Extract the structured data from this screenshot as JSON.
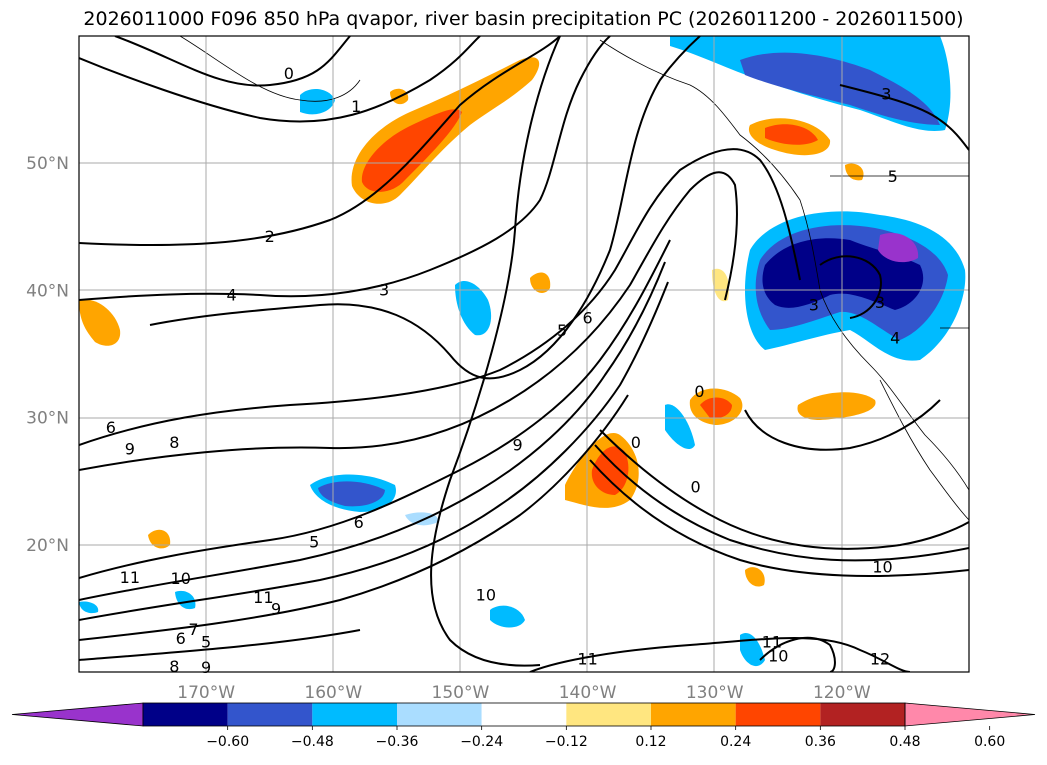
{
  "title": "2026011000 F096 850 hPa qvapor, river basin precipitation PC (2026011200 - 2026011500)",
  "chart_data": {
    "type": "contour-map",
    "title": "2026011000 F096 850 hPa qvapor, river basin precipitation PC (2026011200 - 2026011500)",
    "projection": "lat-lon",
    "lon_range": [
      -180,
      -110
    ],
    "lat_range": [
      10,
      60
    ],
    "lat_ticks": [
      {
        "value": 20,
        "label": "20°N"
      },
      {
        "value": 30,
        "label": "30°N"
      },
      {
        "value": 40,
        "label": "40°N"
      },
      {
        "value": 50,
        "label": "50°N"
      }
    ],
    "lon_ticks": [
      {
        "value": -170,
        "label": "170°W"
      },
      {
        "value": -160,
        "label": "160°W"
      },
      {
        "value": -150,
        "label": "150°W"
      },
      {
        "value": -140,
        "label": "140°W"
      },
      {
        "value": -130,
        "label": "130°W"
      },
      {
        "value": -120,
        "label": "120°W"
      }
    ],
    "colorbar": {
      "levels": [
        "−0.60",
        "−0.48",
        "−0.36",
        "−0.24",
        "−0.12",
        "0.12",
        "0.24",
        "0.36",
        "0.48",
        "0.60"
      ],
      "colors": [
        "#9933cc",
        "#000088",
        "#3355cc",
        "#00bbff",
        "#aaddff",
        "#ffffff",
        "#ffe680",
        "#ffa500",
        "#ff4500",
        "#b22222",
        "#ff88aa"
      ],
      "extend": "both"
    },
    "contour_labels": [
      "0",
      "1",
      "2",
      "3",
      "4",
      "5",
      "6",
      "7",
      "8",
      "9",
      "10",
      "11",
      "12"
    ],
    "contour_label_instances": [
      {
        "text": "0",
        "lon": -163.5,
        "lat": 57.0
      },
      {
        "text": "1",
        "lon": -158.2,
        "lat": 54.4
      },
      {
        "text": "2",
        "lon": -165.0,
        "lat": 44.2
      },
      {
        "text": "4",
        "lon": -168.0,
        "lat": 39.6
      },
      {
        "text": "3",
        "lon": -156.0,
        "lat": 40.0
      },
      {
        "text": "6",
        "lon": -177.5,
        "lat": 29.2
      },
      {
        "text": "9",
        "lon": -176.0,
        "lat": 27.5
      },
      {
        "text": "8",
        "lon": -172.5,
        "lat": 28.0
      },
      {
        "text": "6",
        "lon": -158.0,
        "lat": 21.7
      },
      {
        "text": "5",
        "lon": -161.5,
        "lat": 20.2
      },
      {
        "text": "11",
        "lon": -176.0,
        "lat": 17.4
      },
      {
        "text": "10",
        "lon": -172.0,
        "lat": 17.3
      },
      {
        "text": "11",
        "lon": -165.5,
        "lat": 15.8
      },
      {
        "text": "9",
        "lon": -164.5,
        "lat": 14.9
      },
      {
        "text": "7",
        "lon": -171.0,
        "lat": 13.3
      },
      {
        "text": "6",
        "lon": -172.0,
        "lat": 12.6
      },
      {
        "text": "5",
        "lon": -170.0,
        "lat": 12.3
      },
      {
        "text": "8",
        "lon": -172.5,
        "lat": 10.4
      },
      {
        "text": "9",
        "lon": -170.0,
        "lat": 10.3
      },
      {
        "text": "10",
        "lon": -148.0,
        "lat": 16.0
      },
      {
        "text": "11",
        "lon": -140.0,
        "lat": 11.0
      },
      {
        "text": "11",
        "lon": -125.5,
        "lat": 12.3
      },
      {
        "text": "10",
        "lon": -125.0,
        "lat": 11.2
      },
      {
        "text": "12",
        "lon": -117.0,
        "lat": 11.0
      },
      {
        "text": "10",
        "lon": -116.8,
        "lat": 18.2
      },
      {
        "text": "0",
        "lon": -131.5,
        "lat": 24.5
      },
      {
        "text": "0",
        "lon": -131.2,
        "lat": 32.0
      },
      {
        "text": "0",
        "lon": -136.2,
        "lat": 28.0
      },
      {
        "text": "5",
        "lon": -142.0,
        "lat": 36.8
      },
      {
        "text": "6",
        "lon": -140.0,
        "lat": 37.8
      },
      {
        "text": "9",
        "lon": -145.5,
        "lat": 27.8
      },
      {
        "text": "3",
        "lon": -122.2,
        "lat": 38.8
      },
      {
        "text": "3",
        "lon": -117.0,
        "lat": 39.0
      },
      {
        "text": "4",
        "lon": -115.8,
        "lat": 36.2
      },
      {
        "text": "5",
        "lon": -116.0,
        "lat": 48.9
      },
      {
        "text": "3",
        "lon": -116.5,
        "lat": 55.4
      }
    ]
  }
}
